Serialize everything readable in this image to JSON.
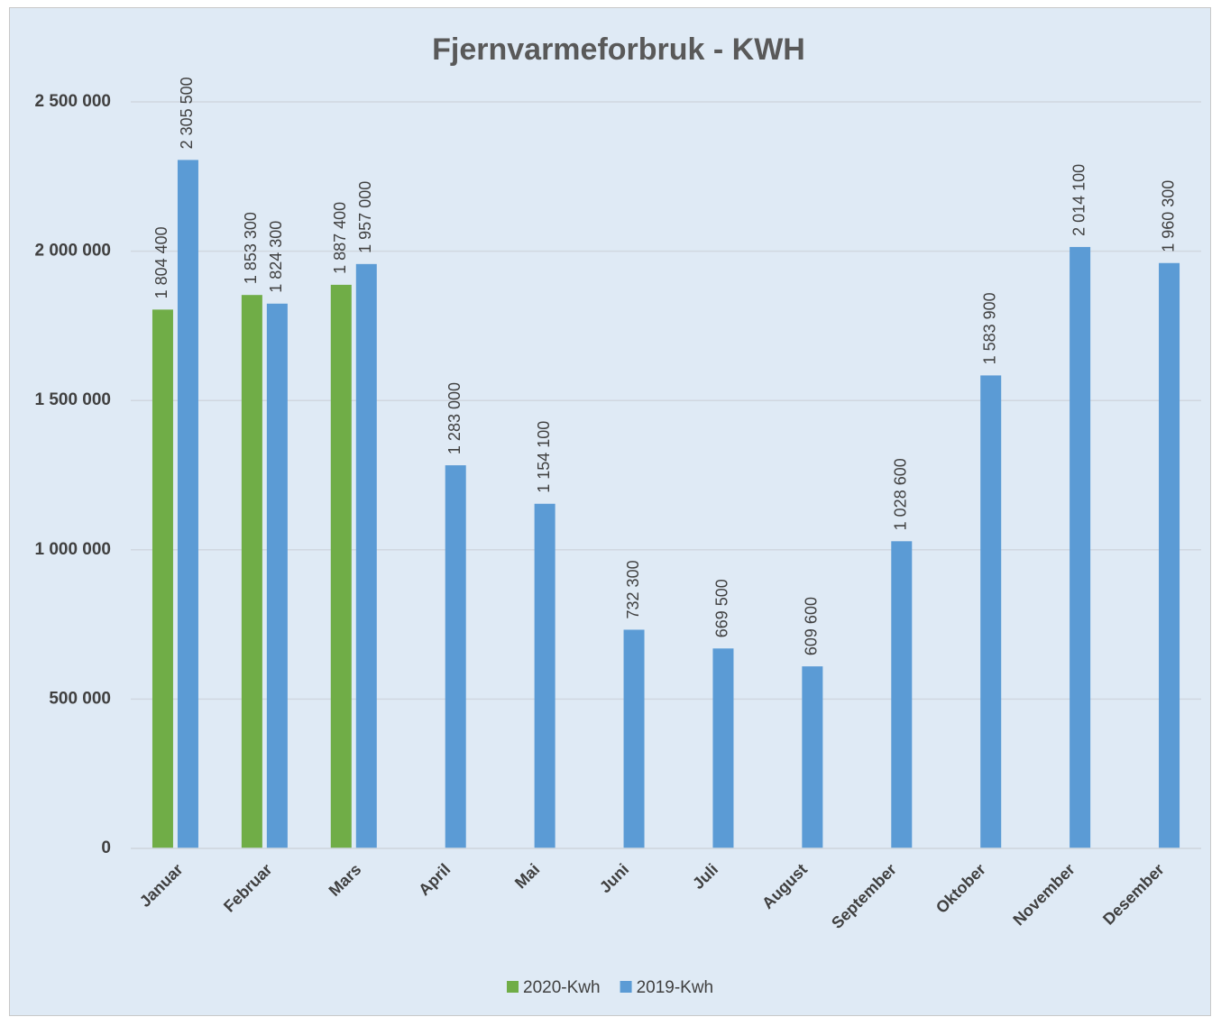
{
  "chart_data": {
    "type": "bar",
    "title": "Fjernvarmeforbruk - KWH",
    "categories": [
      "Januar",
      "Februar",
      "Mars",
      "April",
      "Mai",
      "Juni",
      "Juli",
      "August",
      "September",
      "Oktober",
      "November",
      "Desember"
    ],
    "series": [
      {
        "name": "2020-Kwh",
        "color": "#70ad47",
        "values": [
          1804400,
          1853300,
          1887400,
          null,
          null,
          null,
          null,
          null,
          null,
          null,
          null,
          null
        ],
        "value_labels": [
          "1 804 400",
          "1 853 300",
          "1 887 400",
          null,
          null,
          null,
          null,
          null,
          null,
          null,
          null,
          null
        ]
      },
      {
        "name": "2019-Kwh",
        "color": "#5b9bd5",
        "values": [
          2305500,
          1824300,
          1957000,
          1283000,
          1154100,
          732300,
          669500,
          609600,
          1028600,
          1583900,
          2014100,
          1960300
        ],
        "value_labels": [
          "2 305 500",
          "1 824 300",
          "1 957 000",
          "1 283 000",
          "1 154 100",
          "732 300",
          "669 500",
          "609 600",
          "1 028 600",
          "1 583 900",
          "2 014 100",
          "1 960 300"
        ]
      }
    ],
    "ylim": [
      0,
      2500000
    ],
    "yticks": [
      0,
      {
        "value": 500000,
        "label": "500 000"
      },
      {
        "value": 1000000,
        "label": "1 000 000"
      },
      {
        "value": 1500000,
        "label": "1 500 000"
      },
      {
        "value": 2000000,
        "label": "2 000 000"
      },
      {
        "value": 2500000,
        "label": "2 500 000"
      }
    ],
    "grid": true,
    "legend": "bottom"
  }
}
